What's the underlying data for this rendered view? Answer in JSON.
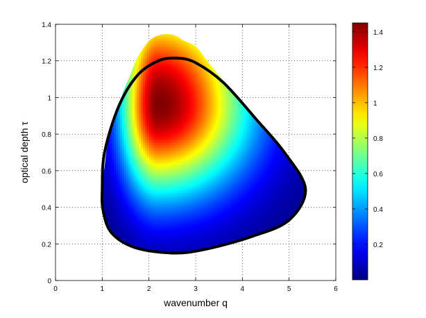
{
  "chart_data": {
    "type": "heatmap",
    "title": "",
    "xlabel": "wavenumber q",
    "ylabel": "optical depth τ",
    "xlim": [
      0,
      6
    ],
    "ylim": [
      0,
      1.4
    ],
    "xticks": [
      "0",
      "1",
      "2",
      "3",
      "4",
      "5",
      "6"
    ],
    "yticks": [
      "0",
      "0.2",
      "0.4",
      "0.6",
      "0.8",
      "1",
      "1.2",
      "1.4"
    ],
    "grid": true,
    "colormap": "jet",
    "colorbar": {
      "range": [
        0,
        1.45
      ],
      "ticks": [
        "0.2",
        "0.4",
        "0.6",
        "0.8",
        "1",
        "1.2",
        "1.4"
      ],
      "position": "right"
    },
    "field": {
      "peak_value": 1.45,
      "peak_at": {
        "q": 2.2,
        "tau": 0.96
      },
      "max_tau_at": {
        "q": 2.35,
        "tau": 1.34
      }
    },
    "contour": {
      "color": "#000000",
      "points": [
        [
          1.0,
          0.5
        ],
        [
          1.05,
          0.7
        ],
        [
          1.35,
          0.95
        ],
        [
          1.75,
          1.12
        ],
        [
          2.2,
          1.2
        ],
        [
          2.6,
          1.215
        ],
        [
          3.0,
          1.19
        ],
        [
          3.6,
          1.08
        ],
        [
          4.3,
          0.88
        ],
        [
          4.9,
          0.7
        ],
        [
          5.35,
          0.5
        ],
        [
          5.0,
          0.33
        ],
        [
          4.2,
          0.24
        ],
        [
          3.2,
          0.17
        ],
        [
          2.5,
          0.15
        ],
        [
          1.7,
          0.18
        ],
        [
          1.2,
          0.26
        ],
        [
          1.02,
          0.38
        ],
        [
          1.0,
          0.5
        ]
      ]
    }
  }
}
